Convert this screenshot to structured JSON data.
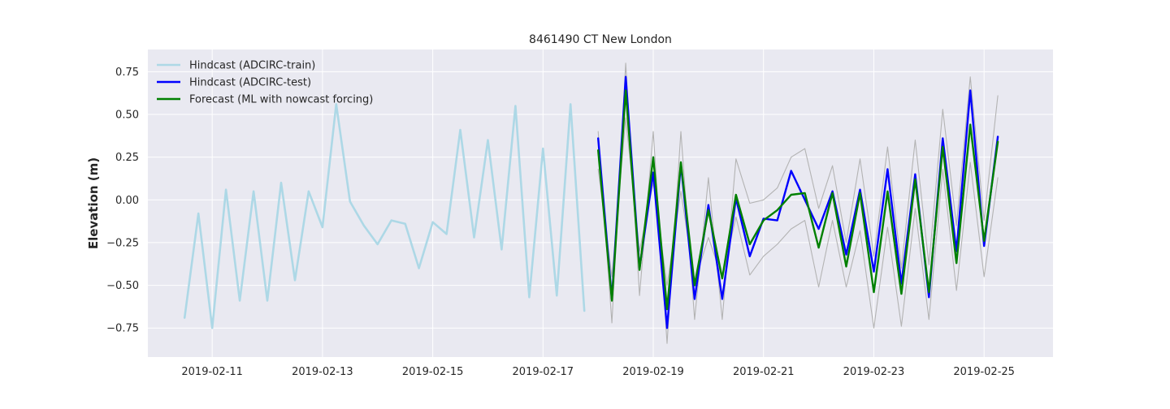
{
  "chart_data": {
    "type": "line",
    "title": "8461490 CT New London",
    "xlabel": "",
    "ylabel": "Elevation (m)",
    "xlim": [
      "2019-02-09T20:00",
      "2019-02-26T06:00"
    ],
    "ylim": [
      -0.92,
      0.88
    ],
    "x_ticks": [
      "2019-02-11",
      "2019-02-13",
      "2019-02-15",
      "2019-02-17",
      "2019-02-19",
      "2019-02-21",
      "2019-02-23",
      "2019-02-25"
    ],
    "y_ticks": [
      -0.75,
      -0.5,
      -0.25,
      0.0,
      0.25,
      0.5,
      0.75
    ],
    "y_tick_labels": [
      "−0.75",
      "−0.50",
      "−0.25",
      "0.00",
      "0.25",
      "0.50",
      "0.75"
    ],
    "grid": true,
    "background": "#e9e9f1",
    "legend_position": "top-left",
    "series": [
      {
        "name": "Hindcast (ADCIRC-train)",
        "color": "#add8e6",
        "x": [
          "2019-02-10T12:00",
          "2019-02-10T18:00",
          "2019-02-11T00:00",
          "2019-02-11T06:00",
          "2019-02-11T12:00",
          "2019-02-11T18:00",
          "2019-02-12T00:00",
          "2019-02-12T06:00",
          "2019-02-12T12:00",
          "2019-02-12T18:00",
          "2019-02-13T00:00",
          "2019-02-13T06:00",
          "2019-02-13T12:00",
          "2019-02-13T18:00",
          "2019-02-14T00:00",
          "2019-02-14T06:00",
          "2019-02-14T12:00",
          "2019-02-14T18:00",
          "2019-02-15T00:00",
          "2019-02-15T06:00",
          "2019-02-15T12:00",
          "2019-02-15T18:00",
          "2019-02-16T00:00",
          "2019-02-16T06:00",
          "2019-02-16T12:00",
          "2019-02-16T18:00",
          "2019-02-17T00:00",
          "2019-02-17T06:00",
          "2019-02-17T12:00",
          "2019-02-17T18:00"
        ],
        "y": [
          -0.69,
          -0.08,
          -0.75,
          0.06,
          -0.59,
          0.05,
          -0.59,
          0.1,
          -0.47,
          0.05,
          -0.16,
          0.56,
          -0.01,
          -0.15,
          -0.26,
          -0.12,
          -0.14,
          -0.4,
          -0.13,
          -0.2,
          0.41,
          -0.22,
          0.35,
          -0.29,
          0.55,
          -0.57,
          0.3,
          -0.56,
          0.56,
          -0.65
        ]
      },
      {
        "name": "Hindcast (ADCIRC-test)",
        "color": "#0000ff",
        "x": [
          "2019-02-18T00:00",
          "2019-02-18T06:00",
          "2019-02-18T12:00",
          "2019-02-18T18:00",
          "2019-02-19T00:00",
          "2019-02-19T06:00",
          "2019-02-19T12:00",
          "2019-02-19T18:00",
          "2019-02-20T00:00",
          "2019-02-20T06:00",
          "2019-02-20T12:00",
          "2019-02-20T18:00",
          "2019-02-21T00:00",
          "2019-02-21T06:00",
          "2019-02-21T12:00",
          "2019-02-21T18:00",
          "2019-02-22T00:00",
          "2019-02-22T06:00",
          "2019-02-22T12:00",
          "2019-02-22T18:00",
          "2019-02-23T00:00",
          "2019-02-23T06:00",
          "2019-02-23T12:00",
          "2019-02-23T18:00",
          "2019-02-24T00:00",
          "2019-02-24T06:00",
          "2019-02-24T12:00",
          "2019-02-24T18:00",
          "2019-02-25T00:00",
          "2019-02-25T06:00"
        ],
        "y": [
          0.36,
          -0.58,
          0.72,
          -0.4,
          0.16,
          -0.75,
          0.21,
          -0.58,
          -0.03,
          -0.58,
          0.01,
          -0.33,
          -0.11,
          -0.12,
          0.17,
          0.0,
          -0.17,
          0.05,
          -0.32,
          0.06,
          -0.42,
          0.18,
          -0.49,
          0.15,
          -0.57,
          0.36,
          -0.3,
          0.64,
          -0.27,
          0.37
        ]
      },
      {
        "name": "Forecast (ML with nowcast forcing)",
        "color": "#008000",
        "x": [
          "2019-02-18T00:00",
          "2019-02-18T06:00",
          "2019-02-18T12:00",
          "2019-02-18T18:00",
          "2019-02-19T00:00",
          "2019-02-19T06:00",
          "2019-02-19T12:00",
          "2019-02-19T18:00",
          "2019-02-20T00:00",
          "2019-02-20T06:00",
          "2019-02-20T12:00",
          "2019-02-20T18:00",
          "2019-02-21T00:00",
          "2019-02-21T06:00",
          "2019-02-21T12:00",
          "2019-02-21T18:00",
          "2019-02-22T00:00",
          "2019-02-22T06:00",
          "2019-02-22T12:00",
          "2019-02-22T18:00",
          "2019-02-23T00:00",
          "2019-02-23T06:00",
          "2019-02-23T12:00",
          "2019-02-23T18:00",
          "2019-02-24T00:00",
          "2019-02-24T06:00",
          "2019-02-24T12:00",
          "2019-02-24T18:00",
          "2019-02-25T00:00",
          "2019-02-25T06:00"
        ],
        "y": [
          0.29,
          -0.59,
          0.64,
          -0.41,
          0.25,
          -0.64,
          0.22,
          -0.5,
          -0.06,
          -0.46,
          0.03,
          -0.26,
          -0.12,
          -0.06,
          0.03,
          0.04,
          -0.28,
          0.04,
          -0.39,
          0.04,
          -0.54,
          0.05,
          -0.55,
          0.12,
          -0.54,
          0.31,
          -0.37,
          0.44,
          -0.24,
          0.34
        ]
      },
      {
        "color": "#b3b3b3",
        "x": [
          "2019-02-18T00:00",
          "2019-02-18T06:00",
          "2019-02-18T12:00",
          "2019-02-18T18:00",
          "2019-02-19T00:00",
          "2019-02-19T06:00",
          "2019-02-19T12:00",
          "2019-02-19T18:00",
          "2019-02-20T00:00",
          "2019-02-20T06:00",
          "2019-02-20T12:00",
          "2019-02-20T18:00",
          "2019-02-21T00:00",
          "2019-02-21T06:00",
          "2019-02-21T12:00",
          "2019-02-21T18:00",
          "2019-02-22T00:00",
          "2019-02-22T06:00",
          "2019-02-22T12:00",
          "2019-02-22T18:00",
          "2019-02-23T00:00",
          "2019-02-23T06:00",
          "2019-02-23T12:00",
          "2019-02-23T18:00",
          "2019-02-24T00:00",
          "2019-02-24T06:00",
          "2019-02-24T12:00",
          "2019-02-24T18:00",
          "2019-02-25T00:00",
          "2019-02-25T06:00"
        ],
        "y": [
          0.4,
          -0.72,
          0.8,
          -0.56,
          0.4,
          -0.84,
          0.4,
          -0.7,
          0.13,
          -0.7,
          0.24,
          -0.02,
          0.0,
          0.07,
          0.25,
          0.3,
          -0.05,
          0.2,
          -0.25,
          0.24,
          -0.33,
          0.31,
          -0.4,
          0.35,
          -0.38,
          0.53,
          -0.15,
          0.72,
          -0.12,
          0.61
        ]
      },
      {
        "color": "#b3b3b3",
        "x": [
          "2019-02-18T00:00",
          "2019-02-18T06:00",
          "2019-02-18T12:00",
          "2019-02-18T18:00",
          "2019-02-19T00:00",
          "2019-02-19T06:00",
          "2019-02-19T12:00",
          "2019-02-19T18:00",
          "2019-02-20T00:00",
          "2019-02-20T06:00",
          "2019-02-20T12:00",
          "2019-02-20T18:00",
          "2019-02-21T00:00",
          "2019-02-21T06:00",
          "2019-02-21T12:00",
          "2019-02-21T18:00",
          "2019-02-22T00:00",
          "2019-02-22T06:00",
          "2019-02-22T12:00",
          "2019-02-22T18:00",
          "2019-02-23T00:00",
          "2019-02-23T06:00",
          "2019-02-23T12:00",
          "2019-02-23T18:00",
          "2019-02-24T00:00",
          "2019-02-24T06:00",
          "2019-02-24T12:00",
          "2019-02-24T18:00",
          "2019-02-25T00:00",
          "2019-02-25T06:00"
        ],
        "y": [
          0.18,
          -0.45,
          0.48,
          -0.3,
          0.1,
          -0.5,
          0.05,
          -0.48,
          -0.22,
          -0.46,
          -0.1,
          -0.44,
          -0.33,
          -0.26,
          -0.17,
          -0.12,
          -0.51,
          -0.12,
          -0.51,
          -0.18,
          -0.75,
          -0.16,
          -0.74,
          -0.05,
          -0.7,
          0.18,
          -0.53,
          0.22,
          -0.45,
          0.13
        ]
      }
    ]
  }
}
